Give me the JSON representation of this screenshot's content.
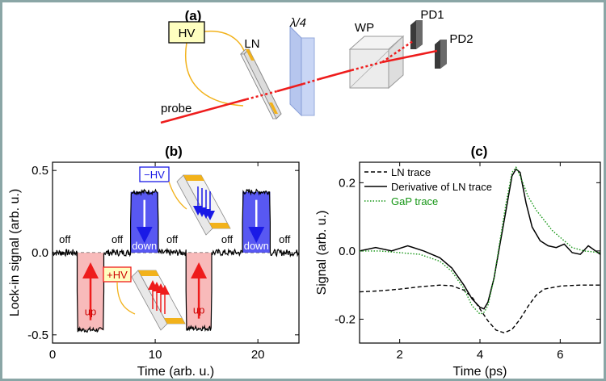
{
  "panel_a": {
    "label": "(a)",
    "hv": "HV",
    "ln": "LN",
    "quarter_wave": "λ/4",
    "wp": "WP",
    "pd1": "PD1",
    "pd2": "PD2",
    "probe": "probe"
  },
  "panel_b": {
    "label": "(b)",
    "off_label": "off",
    "up_label": "up",
    "down_label": "down",
    "minus_hv": "−HV",
    "plus_hv": "+HV"
  },
  "panel_c": {
    "label": "(c)"
  },
  "colors": {
    "red": "#ee1c1c",
    "blue": "#1a1ae6",
    "green": "#159615",
    "orange": "#f2b21b",
    "hv_box": "#ffffc0"
  },
  "chart_data": [
    {
      "type": "line",
      "panel": "b",
      "xlabel": "Time (arb. u.)",
      "ylabel": "Lock-in signal (arb. u.)",
      "xlim": [
        0,
        24
      ],
      "ylim": [
        -0.55,
        0.55
      ],
      "xticks": [
        0,
        10,
        20
      ],
      "yticks": [
        -0.5,
        0.0,
        0.5
      ],
      "segments": [
        {
          "state": "off",
          "start": 0,
          "end": 2.4,
          "level": 0.0
        },
        {
          "state": "up",
          "start": 2.4,
          "end": 5.0,
          "level": -0.47
        },
        {
          "state": "off",
          "start": 5.0,
          "end": 7.6,
          "level": 0.0
        },
        {
          "state": "down",
          "start": 7.6,
          "end": 10.3,
          "level": 0.37
        },
        {
          "state": "off",
          "start": 10.3,
          "end": 13.0,
          "level": 0.0
        },
        {
          "state": "up",
          "start": 13.0,
          "end": 15.5,
          "level": -0.46
        },
        {
          "state": "off",
          "start": 15.5,
          "end": 18.5,
          "level": 0.0
        },
        {
          "state": "down",
          "start": 18.5,
          "end": 21.2,
          "level": 0.37
        },
        {
          "state": "off",
          "start": 21.2,
          "end": 24,
          "level": 0.0
        }
      ]
    },
    {
      "type": "line",
      "panel": "c",
      "xlabel": "Time (ps)",
      "ylabel": "Signal (arb. u.)",
      "xlim": [
        1,
        7
      ],
      "ylim": [
        -0.27,
        0.26
      ],
      "xticks": [
        2,
        4,
        6
      ],
      "yticks": [
        -0.2,
        0.0,
        0.2
      ],
      "legend_position": "top-left",
      "series": [
        {
          "name": "LN trace",
          "style": "dashed",
          "color": "#000000",
          "x": [
            1.0,
            1.5,
            2.0,
            2.5,
            3.0,
            3.3,
            3.6,
            3.8,
            4.0,
            4.2,
            4.4,
            4.6,
            4.8,
            5.0,
            5.2,
            5.4,
            5.6,
            6.0,
            6.5,
            7.0
          ],
          "y": [
            -0.12,
            -0.117,
            -0.112,
            -0.105,
            -0.1,
            -0.102,
            -0.115,
            -0.135,
            -0.17,
            -0.205,
            -0.232,
            -0.24,
            -0.23,
            -0.2,
            -0.162,
            -0.13,
            -0.112,
            -0.103,
            -0.1,
            -0.1
          ]
        },
        {
          "name": "Derivative of LN trace",
          "style": "solid",
          "color": "#000000",
          "x": [
            1.0,
            1.4,
            1.8,
            2.2,
            2.6,
            3.0,
            3.3,
            3.6,
            3.8,
            4.0,
            4.1,
            4.2,
            4.35,
            4.5,
            4.65,
            4.8,
            4.9,
            5.0,
            5.15,
            5.3,
            5.5,
            5.7,
            5.9,
            6.1,
            6.3,
            6.5,
            6.7,
            7.0
          ],
          "y": [
            0.0,
            0.01,
            0.0,
            0.015,
            0.0,
            -0.02,
            -0.05,
            -0.1,
            -0.14,
            -0.165,
            -0.17,
            -0.15,
            -0.08,
            0.02,
            0.12,
            0.22,
            0.24,
            0.23,
            0.14,
            0.07,
            0.03,
            0.015,
            0.01,
            0.02,
            -0.005,
            -0.01,
            0.015,
            -0.01
          ]
        },
        {
          "name": "GaP trace",
          "style": "dotted",
          "color": "#159615",
          "x": [
            1.0,
            1.5,
            2.0,
            2.5,
            3.0,
            3.3,
            3.6,
            3.8,
            4.0,
            4.1,
            4.2,
            4.35,
            4.5,
            4.65,
            4.8,
            4.9,
            5.0,
            5.2,
            5.4,
            5.6,
            5.8,
            6.0,
            6.3,
            6.6,
            7.0
          ],
          "y": [
            0.0,
            0.0,
            -0.005,
            -0.01,
            -0.03,
            -0.06,
            -0.11,
            -0.16,
            -0.185,
            -0.18,
            -0.16,
            -0.08,
            0.03,
            0.14,
            0.23,
            0.245,
            0.22,
            0.16,
            0.12,
            0.09,
            0.06,
            0.04,
            0.01,
            0.0,
            -0.005
          ]
        }
      ]
    }
  ]
}
